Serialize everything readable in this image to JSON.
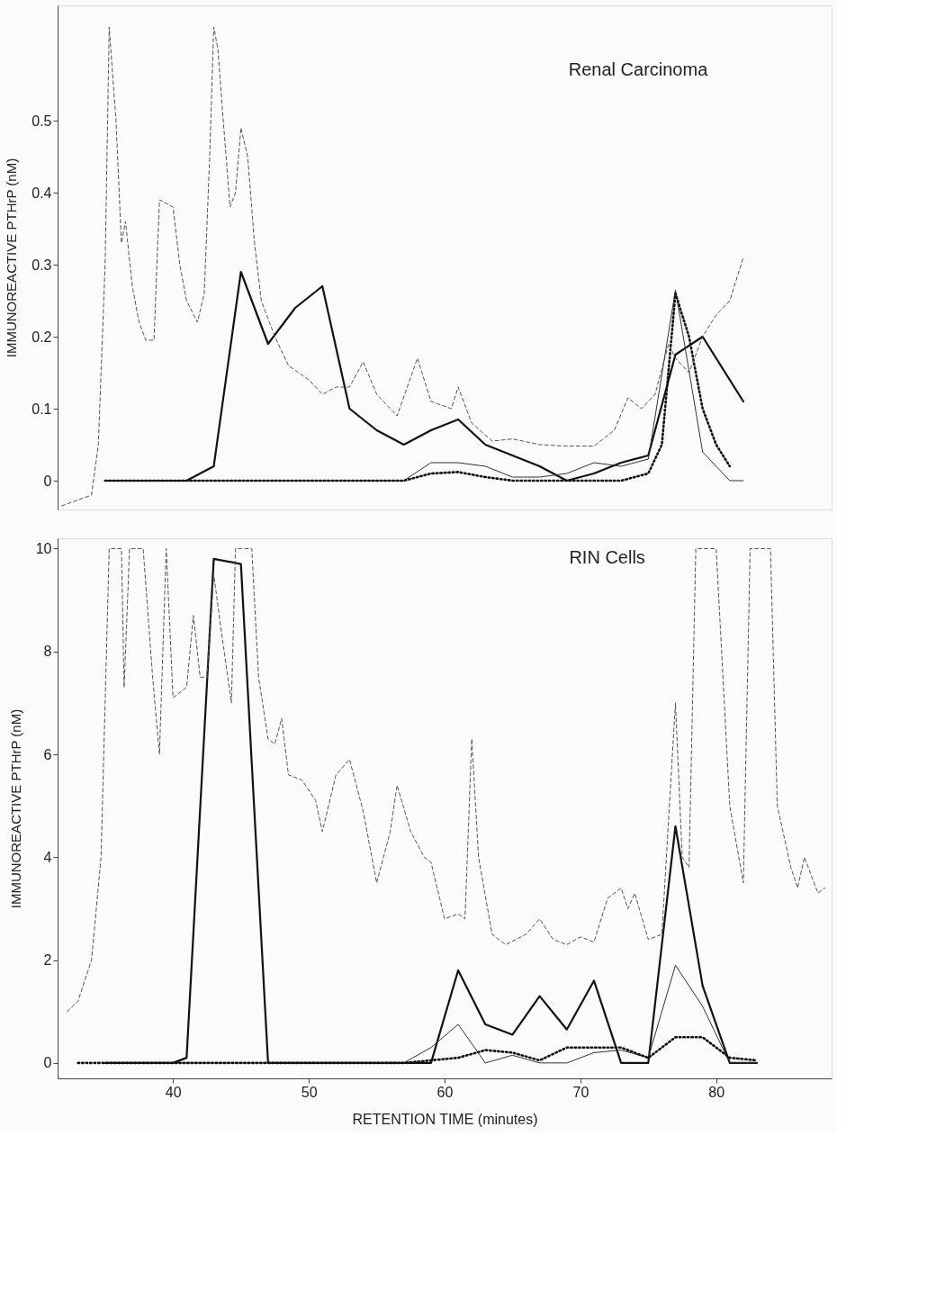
{
  "chart_data": [
    {
      "type": "line",
      "title": "Renal Carcinoma",
      "ylabel": "IMMUNOREACTIVE PTHrP (nM)",
      "xlim": [
        31.5,
        88.5
      ],
      "ylim": [
        -0.04,
        0.66
      ],
      "yticks": [
        0,
        0.1,
        0.2,
        0.3,
        0.4,
        0.5
      ],
      "tick_labels": "y",
      "grid": false,
      "marker": "none",
      "series": [
        {
          "color": "#111111",
          "line_style": "solid",
          "x": [
            35,
            41,
            43,
            45,
            47,
            49,
            51,
            53,
            55,
            57,
            59,
            61,
            63,
            65,
            67,
            69,
            71,
            73,
            75,
            77,
            79,
            82
          ],
          "values": [
            0,
            0,
            0.02,
            0.29,
            0.19,
            0.24,
            0.27,
            0.1,
            0.07,
            0.05,
            0.07,
            0.085,
            0.05,
            0.035,
            0.02,
            0,
            0.01,
            0.025,
            0.035,
            0.175,
            0.2,
            0.11
          ]
        },
        {
          "color": "#333333",
          "line_style": "solid",
          "x": [
            35,
            57,
            59,
            61,
            63,
            65,
            67,
            69,
            71,
            73,
            75,
            77,
            79,
            81,
            82
          ],
          "values": [
            0,
            0,
            0.025,
            0.025,
            0.02,
            0.005,
            0.005,
            0.01,
            0.025,
            0.02,
            0.03,
            0.265,
            0.04,
            0,
            0
          ]
        },
        {
          "color": "#111111",
          "line_style": "dotted",
          "x": [
            35,
            57,
            59,
            61,
            63,
            65,
            73,
            75,
            76,
            77,
            78,
            79,
            80,
            81
          ],
          "values": [
            0,
            0,
            0.01,
            0.012,
            0.005,
            0,
            0,
            0.01,
            0.05,
            0.26,
            0.2,
            0.1,
            0.05,
            0.02
          ]
        },
        {
          "color": "#555555",
          "line_style": "dashed",
          "x": [
            31.8,
            34,
            34.5,
            35,
            35.3,
            35.8,
            36.2,
            36.5,
            37,
            37.5,
            38,
            38.6,
            39,
            40,
            40.5,
            41,
            41.8,
            42.3,
            42.7,
            43,
            43.3,
            43.7,
            44.2,
            44.6,
            45,
            45.5,
            46,
            46.5,
            47.5,
            48.5,
            50,
            51,
            52,
            53,
            54,
            55,
            56.5,
            58,
            59,
            60.5,
            61,
            62,
            63.5,
            65,
            67,
            69,
            71,
            72.5,
            73.5,
            74.5,
            75.5,
            76.5,
            77,
            78,
            79,
            80,
            81,
            82
          ],
          "values": [
            -0.035,
            -0.02,
            0.05,
            0.3,
            0.63,
            0.5,
            0.33,
            0.36,
            0.27,
            0.22,
            0.195,
            0.195,
            0.39,
            0.38,
            0.3,
            0.25,
            0.22,
            0.26,
            0.45,
            0.63,
            0.6,
            0.5,
            0.38,
            0.4,
            0.49,
            0.45,
            0.33,
            0.25,
            0.2,
            0.16,
            0.14,
            0.12,
            0.13,
            0.13,
            0.165,
            0.12,
            0.09,
            0.17,
            0.11,
            0.1,
            0.13,
            0.08,
            0.055,
            0.058,
            0.05,
            0.048,
            0.048,
            0.07,
            0.115,
            0.1,
            0.12,
            0.19,
            0.17,
            0.15,
            0.2,
            0.23,
            0.25,
            0.31
          ]
        }
      ]
    },
    {
      "type": "line",
      "title": "RIN Cells",
      "ylabel": "IMMUNOREACTIVE PTHrP (nM)",
      "xlabel": "RETENTION TIME (minutes)",
      "xlim": [
        31.5,
        88.5
      ],
      "ylim": [
        -0.3,
        10.2
      ],
      "xticks": [
        40,
        50,
        60,
        70,
        80
      ],
      "yticks": [
        0,
        2,
        4,
        6,
        8,
        10
      ],
      "grid": false,
      "marker": "none",
      "series": [
        {
          "color": "#111111",
          "line_style": "solid",
          "x": [
            35,
            40,
            41,
            43,
            45,
            47,
            57,
            59,
            61,
            63,
            65,
            67,
            69,
            71,
            73,
            75,
            77,
            79,
            81,
            83
          ],
          "values": [
            0,
            0,
            0.1,
            9.8,
            9.7,
            0,
            0,
            0,
            1.8,
            0.75,
            0.55,
            1.3,
            0.65,
            1.6,
            0,
            0,
            4.6,
            1.5,
            0,
            0
          ]
        },
        {
          "color": "#333333",
          "line_style": "solid",
          "x": [
            35,
            57,
            59,
            61,
            63,
            65,
            67,
            69,
            71,
            73,
            75,
            77,
            79,
            81,
            83
          ],
          "values": [
            0,
            0,
            0.3,
            0.75,
            0,
            0.15,
            0,
            0,
            0.2,
            0.25,
            0.1,
            1.9,
            1.1,
            0,
            0
          ]
        },
        {
          "color": "#111111",
          "line_style": "dotted",
          "x": [
            33,
            57,
            59,
            61,
            63,
            65,
            67,
            69,
            71,
            73,
            75,
            77,
            79,
            81,
            83
          ],
          "values": [
            0,
            0,
            0.05,
            0.1,
            0.25,
            0.2,
            0.05,
            0.3,
            0.3,
            0.3,
            0.1,
            0.5,
            0.5,
            0.1,
            0.05
          ]
        },
        {
          "color": "#555555",
          "line_style": "dashed",
          "x": [
            32.2,
            33,
            34,
            34.7,
            35,
            35.3,
            36.2,
            36.4,
            36.8,
            37.8,
            38.5,
            39,
            39.5,
            40,
            41,
            41.5,
            42,
            42.5,
            43,
            43.5,
            44.3,
            44.6,
            45.8,
            46.3,
            47,
            47.5,
            48,
            48.5,
            49.5,
            50.5,
            51,
            52,
            53,
            54,
            55,
            56,
            56.5,
            57.5,
            58.5,
            59,
            60,
            61,
            61.5,
            62,
            62.5,
            63.5,
            64.5,
            66,
            67,
            68,
            69,
            70,
            71,
            72,
            73,
            73.5,
            74,
            75,
            76,
            77,
            77.5,
            78,
            78.5,
            80,
            81,
            82,
            82.5,
            84,
            84.5,
            85.5,
            86,
            86.5,
            87.5,
            88
          ],
          "values": [
            1.0,
            1.2,
            2.0,
            4,
            7,
            10,
            10,
            7.3,
            10,
            10,
            7.5,
            6.0,
            10,
            7.1,
            7.3,
            8.7,
            7.5,
            7.5,
            9.5,
            8.5,
            7.0,
            10,
            10,
            7.5,
            6.3,
            6.2,
            6.7,
            5.6,
            5.5,
            5.1,
            4.5,
            5.6,
            5.9,
            4.9,
            3.5,
            4.5,
            5.4,
            4.5,
            4.0,
            3.9,
            2.8,
            2.9,
            2.8,
            6.3,
            4.0,
            2.5,
            2.3,
            2.5,
            2.8,
            2.4,
            2.3,
            2.45,
            2.35,
            3.2,
            3.4,
            3.0,
            3.3,
            2.4,
            2.5,
            7.0,
            4.0,
            3.8,
            10,
            10,
            5,
            3.5,
            10,
            10,
            5,
            3.8,
            3.4,
            4.0,
            3.3,
            3.4
          ]
        }
      ]
    }
  ]
}
